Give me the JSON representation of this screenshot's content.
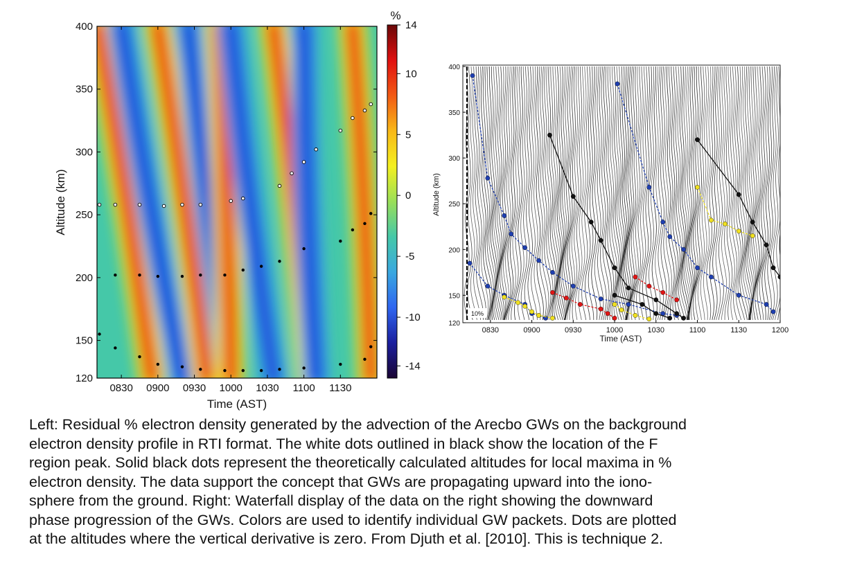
{
  "figure": {
    "caption_lines": [
      "Left: Residual % electron density generated by the advection of the Arecbo GWs on the background",
      "electron density profile in RTI format.  The white dots outlined in black show the location of the F",
      "region peak. Solid black dots represent the theoretically calculated altitudes for local maxima in %",
      "electron density.  The data support the concept that GWs are propagating upward into the iono-",
      "sphere from the ground.  Right: Waterfall display of the data on the right showing the downward",
      "phase progression of the GWs.  Colors are used to identify individual GW packets.  Dots are plotted",
      "at the altitudes where the vertical derivative is zero.   From Djuth et al. [2010].  This is technique 2."
    ]
  },
  "chart_data": [
    {
      "type": "heatmap",
      "title": "",
      "xlabel": "Time (AST)",
      "ylabel": "Altitude (km)",
      "xlim": [
        810,
        1200
      ],
      "ylim": [
        120,
        400
      ],
      "x_ticks": [
        830,
        900,
        930,
        1000,
        1030,
        1100,
        1130
      ],
      "x_tick_labels": [
        "0830",
        "0900",
        "0930",
        "1000",
        "1030",
        "1100",
        "1130"
      ],
      "y_ticks": [
        120,
        150,
        200,
        250,
        300,
        350,
        400
      ],
      "y_tick_labels": [
        "120",
        "150",
        "200",
        "250",
        "300",
        "350",
        "400"
      ],
      "colorbar": {
        "unit": "%",
        "range": [
          -15,
          14
        ],
        "ticks": [
          14,
          10,
          5,
          0,
          -5,
          -10,
          -14
        ],
        "tick_labels": [
          "14",
          "10",
          "5",
          "0",
          "-5",
          "-10",
          "-14"
        ],
        "colors": [
          "#1a0533",
          "#1b1f9e",
          "#2f66f0",
          "#3aa8e0",
          "#45c8a8",
          "#9adf58",
          "#f4f020",
          "#f8b818",
          "#f25a14",
          "#e01010",
          "#6a0808"
        ]
      },
      "f_region_peak_white_dots": [
        {
          "x": 812,
          "y": 258
        },
        {
          "x": 825,
          "y": 258
        },
        {
          "x": 845,
          "y": 258
        },
        {
          "x": 905,
          "y": 257
        },
        {
          "x": 920,
          "y": 258
        },
        {
          "x": 935,
          "y": 258
        },
        {
          "x": 1000,
          "y": 261
        },
        {
          "x": 1010,
          "y": 263
        },
        {
          "x": 1040,
          "y": 273
        },
        {
          "x": 1050,
          "y": 283
        },
        {
          "x": 1060,
          "y": 292
        },
        {
          "x": 1110,
          "y": 302
        },
        {
          "x": 1130,
          "y": 317
        },
        {
          "x": 1140,
          "y": 327
        },
        {
          "x": 1150,
          "y": 333
        },
        {
          "x": 1155,
          "y": 338
        }
      ],
      "local_maxima_black_dots": [
        {
          "x": 812,
          "y": 155
        },
        {
          "x": 825,
          "y": 202
        },
        {
          "x": 845,
          "y": 202
        },
        {
          "x": 900,
          "y": 201
        },
        {
          "x": 920,
          "y": 201
        },
        {
          "x": 935,
          "y": 202
        },
        {
          "x": 955,
          "y": 202
        },
        {
          "x": 1010,
          "y": 206
        },
        {
          "x": 1025,
          "y": 209
        },
        {
          "x": 1040,
          "y": 213
        },
        {
          "x": 1100,
          "y": 223
        },
        {
          "x": 1130,
          "y": 229
        },
        {
          "x": 1140,
          "y": 238
        },
        {
          "x": 1150,
          "y": 243
        },
        {
          "x": 1155,
          "y": 251
        },
        {
          "x": 825,
          "y": 144
        },
        {
          "x": 845,
          "y": 137
        },
        {
          "x": 900,
          "y": 131
        },
        {
          "x": 920,
          "y": 129
        },
        {
          "x": 935,
          "y": 127
        },
        {
          "x": 955,
          "y": 126
        },
        {
          "x": 1010,
          "y": 126
        },
        {
          "x": 1025,
          "y": 126
        },
        {
          "x": 1040,
          "y": 127
        },
        {
          "x": 1100,
          "y": 128
        },
        {
          "x": 1130,
          "y": 131
        },
        {
          "x": 1150,
          "y": 135
        },
        {
          "x": 1155,
          "y": 145
        }
      ],
      "wave_phase_lines": [
        {
          "polarity": "positive",
          "top": {
            "x": 810,
            "y": 400
          },
          "bottom": {
            "x": 855,
            "y": 120
          }
        },
        {
          "polarity": "negative",
          "top": {
            "x": 830,
            "y": 400
          },
          "bottom": {
            "x": 880,
            "y": 120
          }
        },
        {
          "polarity": "positive",
          "top": {
            "x": 900,
            "y": 400
          },
          "bottom": {
            "x": 940,
            "y": 120
          }
        },
        {
          "polarity": "negative",
          "top": {
            "x": 925,
            "y": 400
          },
          "bottom": {
            "x": 960,
            "y": 120
          }
        },
        {
          "polarity": "positive",
          "top": {
            "x": 950,
            "y": 400
          },
          "bottom": {
            "x": 1000,
            "y": 120
          }
        },
        {
          "polarity": "negative",
          "top": {
            "x": 1000,
            "y": 400
          },
          "bottom": {
            "x": 1035,
            "y": 120
          }
        },
        {
          "polarity": "positive",
          "top": {
            "x": 1035,
            "y": 400
          },
          "bottom": {
            "x": 1065,
            "y": 120
          }
        },
        {
          "polarity": "negative",
          "top": {
            "x": 1100,
            "y": 400
          },
          "bottom": {
            "x": 1110,
            "y": 120
          }
        },
        {
          "polarity": "positive",
          "top": {
            "x": 1140,
            "y": 400
          },
          "bottom": {
            "x": 1155,
            "y": 120
          }
        }
      ]
    },
    {
      "type": "line",
      "title": "",
      "xlabel": "Time (AST)",
      "ylabel": "Altitude (km)",
      "xlim": [
        810,
        1200
      ],
      "ylim": [
        120,
        400
      ],
      "x_ticks": [
        830,
        900,
        930,
        1000,
        1030,
        1100,
        1130,
        1200
      ],
      "x_tick_labels": [
        "0830",
        "0900",
        "0930",
        "1000",
        "1030",
        "1100",
        "1130",
        "1200"
      ],
      "y_ticks": [
        120,
        150,
        200,
        250,
        300,
        350,
        400
      ],
      "y_tick_labels": [
        "120",
        "150",
        "200",
        "250",
        "300",
        "350",
        "400"
      ],
      "scale_label": "10%",
      "background": "waterfall",
      "series": [
        {
          "color": "#1f3fb0",
          "points": [
            [
              817,
              390
            ],
            [
              828,
              278
            ],
            [
              840,
              237
            ],
            [
              845,
              217
            ],
            [
              855,
              202
            ],
            [
              905,
              188
            ],
            [
              915,
              175
            ],
            [
              930,
              160
            ],
            [
              950,
              146
            ],
            [
              1010,
              140
            ],
            [
              1035,
              130
            ],
            [
              1045,
              128
            ]
          ]
        },
        {
          "color": "#1f3fb0",
          "points": [
            [
              1002,
              381
            ],
            [
              1025,
              268
            ],
            [
              1035,
              230
            ],
            [
              1040,
              214
            ],
            [
              1050,
              200
            ],
            [
              1100,
              180
            ],
            [
              1110,
              170
            ],
            [
              1130,
              150
            ],
            [
              1150,
              140
            ],
            [
              1155,
              132
            ]
          ]
        },
        {
          "color": "#1f3fb0",
          "points": [
            [
              815,
              185
            ],
            [
              828,
              160
            ],
            [
              840,
              150
            ],
            [
              855,
              140
            ],
            [
              900,
              130
            ],
            [
              910,
              125
            ]
          ]
        },
        {
          "color": "#111111",
          "points": [
            [
              913,
              325
            ],
            [
              930,
              258
            ],
            [
              943,
              230
            ],
            [
              950,
              210
            ],
            [
              1000,
              180
            ],
            [
              1010,
              158
            ],
            [
              1030,
              145
            ],
            [
              1045,
              130
            ],
            [
              1050,
              125
            ]
          ]
        },
        {
          "color": "#111111",
          "points": [
            [
              1100,
              320
            ],
            [
              1130,
              260
            ],
            [
              1140,
              230
            ],
            [
              1150,
              205
            ],
            [
              1155,
              180
            ],
            [
              1160,
              170
            ],
            [
              1198,
              143
            ]
          ]
        },
        {
          "color": "#111111",
          "points": [
            [
              1000,
              150
            ],
            [
              1020,
              140
            ],
            [
              1030,
              130
            ],
            [
              1040,
              125
            ]
          ]
        },
        {
          "color": "#e01515",
          "points": [
            [
              915,
              153
            ],
            [
              925,
              147
            ],
            [
              935,
              140
            ],
            [
              950,
              135
            ],
            [
              955,
              130
            ],
            [
              1000,
              125
            ]
          ]
        },
        {
          "color": "#e01515",
          "points": [
            [
              1015,
              170
            ],
            [
              1025,
              160
            ],
            [
              1035,
              153
            ],
            [
              1045,
              145
            ]
          ]
        },
        {
          "color": "#f0e020",
          "points": [
            [
              840,
              148
            ],
            [
              850,
              142
            ],
            [
              855,
              138
            ],
            [
              900,
              132
            ],
            [
              905,
              128
            ],
            [
              915,
              125
            ]
          ]
        },
        {
          "color": "#f0e020",
          "points": [
            [
              1100,
              268
            ],
            [
              1110,
              232
            ],
            [
              1120,
              228
            ],
            [
              1130,
              220
            ],
            [
              1140,
              215
            ]
          ]
        },
        {
          "color": "#f0e020",
          "points": [
            [
              1000,
              140
            ],
            [
              1005,
              134
            ],
            [
              1015,
              128
            ],
            [
              1025,
              124
            ]
          ]
        }
      ]
    }
  ]
}
